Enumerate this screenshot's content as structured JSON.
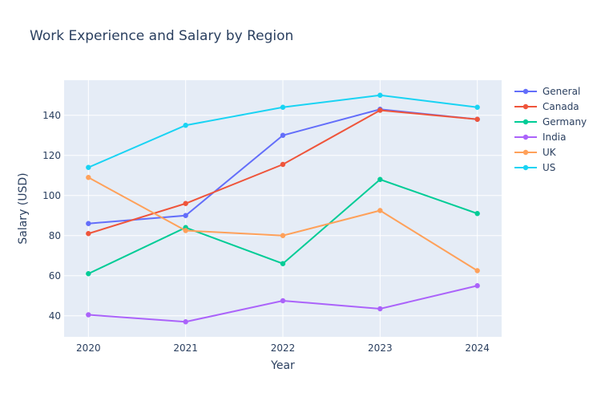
{
  "chart_data": {
    "type": "line",
    "title": "Work Experience and Salary by Region",
    "xlabel": "Year",
    "ylabel": "Salary (USD)",
    "x": [
      2020,
      2021,
      2022,
      2023,
      2024
    ],
    "xlim": [
      2019.75,
      2024.25
    ],
    "ylim": [
      29.5,
      157.5
    ],
    "yticks": [
      40,
      60,
      80,
      100,
      120,
      140
    ],
    "grid": true,
    "legend_position": "top-right",
    "series": [
      {
        "name": "General",
        "color": "#636efa",
        "values": [
          86,
          90,
          130,
          143,
          138
        ]
      },
      {
        "name": "Canada",
        "color": "#ef553b",
        "values": [
          81,
          96,
          115.5,
          142.5,
          138
        ]
      },
      {
        "name": "Germany",
        "color": "#00cc96",
        "values": [
          61,
          84,
          66,
          108,
          91
        ]
      },
      {
        "name": "India",
        "color": "#ab63fa",
        "values": [
          40.5,
          37,
          47.5,
          43.5,
          55
        ]
      },
      {
        "name": "UK",
        "color": "#ffa15a",
        "values": [
          109,
          82.5,
          80,
          92.5,
          62.5
        ]
      },
      {
        "name": "US",
        "color": "#19d3f3",
        "values": [
          114,
          135,
          144,
          150,
          144
        ]
      }
    ]
  }
}
